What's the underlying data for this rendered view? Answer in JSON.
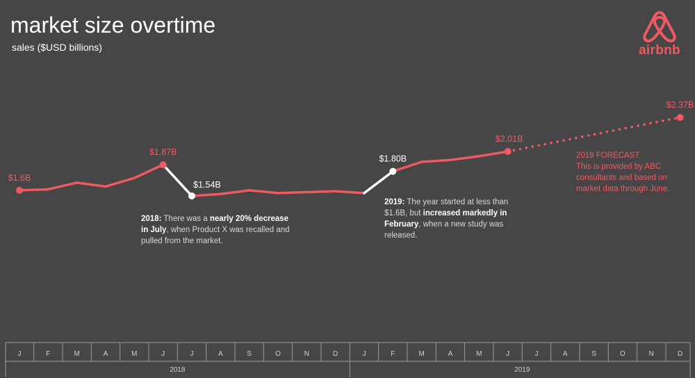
{
  "header": {
    "title": "market size overtime",
    "subtitle": "sales ($USD billions)"
  },
  "logo": {
    "text": "airbnb",
    "icon": "airbnb-belo-icon"
  },
  "colors": {
    "background": "#464646",
    "accent": "#ee5a64",
    "highlight": "#ffffff",
    "note_text": "#d8d8d8",
    "grid": "#9a9a9a"
  },
  "annotations": {
    "note_2018": {
      "year": "2018:",
      "text1": " There was a ",
      "bold1": "nearly 20% decrease in July",
      "text2": ", when Product X was recalled and pulled from the market."
    },
    "note_2019": {
      "year": "2019:",
      "text1": " The year started at less than $1.6B, but ",
      "bold1": "increased markedly in February",
      "text2": ", when a new study was released."
    },
    "forecast_title": "2019 FORECAST",
    "forecast_text": "This is provided by ABC consultants and based on market data through June."
  },
  "chart_data": {
    "type": "line",
    "title": "market size overtime",
    "subtitle": "sales ($USD billions)",
    "ylim": [
      1.25,
      2.6
    ],
    "grid": false,
    "months": [
      "J",
      "F",
      "M",
      "A",
      "M",
      "J",
      "J",
      "A",
      "S",
      "O",
      "N",
      "D",
      "J",
      "F",
      "M",
      "A",
      "M",
      "J",
      "J",
      "A",
      "S",
      "O",
      "N",
      "D"
    ],
    "years": [
      {
        "label": "2018",
        "start": 0,
        "end": 11
      },
      {
        "label": "2019",
        "start": 12,
        "end": 23
      }
    ],
    "series": [
      {
        "style": "actual",
        "x": [
          0,
          1,
          2,
          3,
          4,
          5,
          6,
          7,
          8,
          9,
          10,
          11,
          12,
          13,
          14,
          15,
          16,
          17
        ],
        "values": [
          1.6,
          1.61,
          1.68,
          1.64,
          1.73,
          1.87,
          1.54,
          1.56,
          1.6,
          1.57,
          1.58,
          1.59,
          1.57,
          1.8,
          1.9,
          1.92,
          1.96,
          2.01
        ]
      },
      {
        "style": "forecast",
        "x": [
          17,
          23
        ],
        "values": [
          2.01,
          2.37
        ]
      }
    ],
    "highlight_segments": [
      [
        5,
        6
      ],
      [
        12,
        13
      ]
    ],
    "data_labels": [
      {
        "x": 0,
        "text": "$1.6B",
        "color": "accent"
      },
      {
        "x": 5,
        "text": "$1.87B",
        "color": "accent"
      },
      {
        "x": 6,
        "text": "$1.54B",
        "color": "highlight"
      },
      {
        "x": 13,
        "text": "$1.80B",
        "color": "highlight"
      },
      {
        "x": 17,
        "text": "$2.01B",
        "color": "accent"
      },
      {
        "x": 23,
        "text": "$2.37B",
        "color": "accent"
      }
    ]
  }
}
